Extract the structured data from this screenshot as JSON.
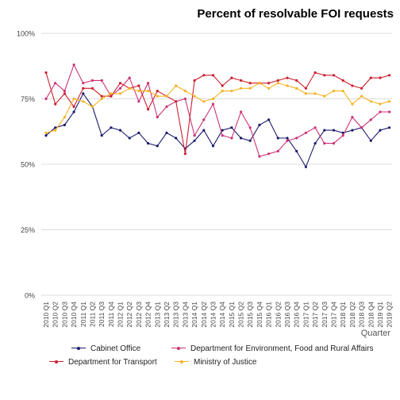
{
  "chart_data": {
    "type": "line",
    "title": "Percent of resolvable FOI requests",
    "xlabel": "Quarter",
    "ylabel": "",
    "ylim": [
      0,
      100
    ],
    "y_ticks": [
      "0%",
      "25%",
      "50%",
      "75%",
      "100%"
    ],
    "grid": "horizontal",
    "legend_position": "bottom",
    "categories": [
      "2010 Q1",
      "2010 Q2",
      "2010 Q3",
      "2010 Q4",
      "2011 Q1",
      "2011 Q2",
      "2011 Q3",
      "2011 Q4",
      "2012 Q1",
      "2012 Q2",
      "2012 Q3",
      "2012 Q4",
      "2013 Q1",
      "2013 Q2",
      "2013 Q3",
      "2013 Q4",
      "2014 Q1",
      "2014 Q2",
      "2014 Q3",
      "2014 Q4",
      "2015 Q1",
      "2015 Q2",
      "2015 Q3",
      "2015 Q4",
      "2016 Q1",
      "2016 Q2",
      "2016 Q3",
      "2016 Q4",
      "2017 Q1",
      "2017 Q2",
      "2017 Q3",
      "2017 Q4",
      "2018 Q1",
      "2018 Q2",
      "2018 Q3",
      "2018 Q4",
      "2019 Q1",
      "2019 Q2"
    ],
    "series": [
      {
        "name": "Cabinet Office",
        "color": "#1c1c6e",
        "values": [
          61,
          64,
          65,
          70,
          77,
          72,
          61,
          64,
          63,
          60,
          62,
          58,
          57,
          62,
          60,
          56,
          59,
          63,
          57,
          63,
          64,
          60,
          59,
          65,
          67,
          60,
          60,
          55,
          49,
          58,
          63,
          63,
          62,
          63,
          64,
          59,
          63,
          64
        ]
      },
      {
        "name": "Department for Environment, Food and Rural Affairs",
        "color": "#cc3377",
        "values": [
          75,
          81,
          78,
          88,
          81,
          82,
          82,
          76,
          79,
          83,
          74,
          81,
          68,
          72,
          74,
          75,
          61,
          67,
          73,
          61,
          60,
          70,
          64,
          53,
          54,
          55,
          59,
          60,
          62,
          64,
          58,
          58,
          61,
          68,
          64,
          67,
          70,
          70
        ]
      },
      {
        "name": "Department for Transport",
        "color": "#cc1f2e",
        "values": [
          85,
          73,
          77,
          72,
          79,
          79,
          76,
          76,
          81,
          79,
          80,
          71,
          78,
          76,
          74,
          54,
          82,
          84,
          84,
          80,
          83,
          82,
          81,
          81,
          81,
          82,
          83,
          82,
          79,
          85,
          84,
          84,
          82,
          80,
          79,
          83,
          83,
          84
        ]
      },
      {
        "name": "Ministry of Justice",
        "color": "#f5b324",
        "values": [
          62,
          63,
          68,
          75,
          74,
          72,
          75,
          77,
          77,
          79,
          78,
          78,
          76,
          76,
          80,
          78,
          76,
          74,
          75,
          78,
          78,
          79,
          79,
          81,
          79,
          81,
          80,
          79,
          77,
          77,
          76,
          78,
          78,
          73,
          76,
          74,
          73,
          74
        ]
      }
    ]
  }
}
